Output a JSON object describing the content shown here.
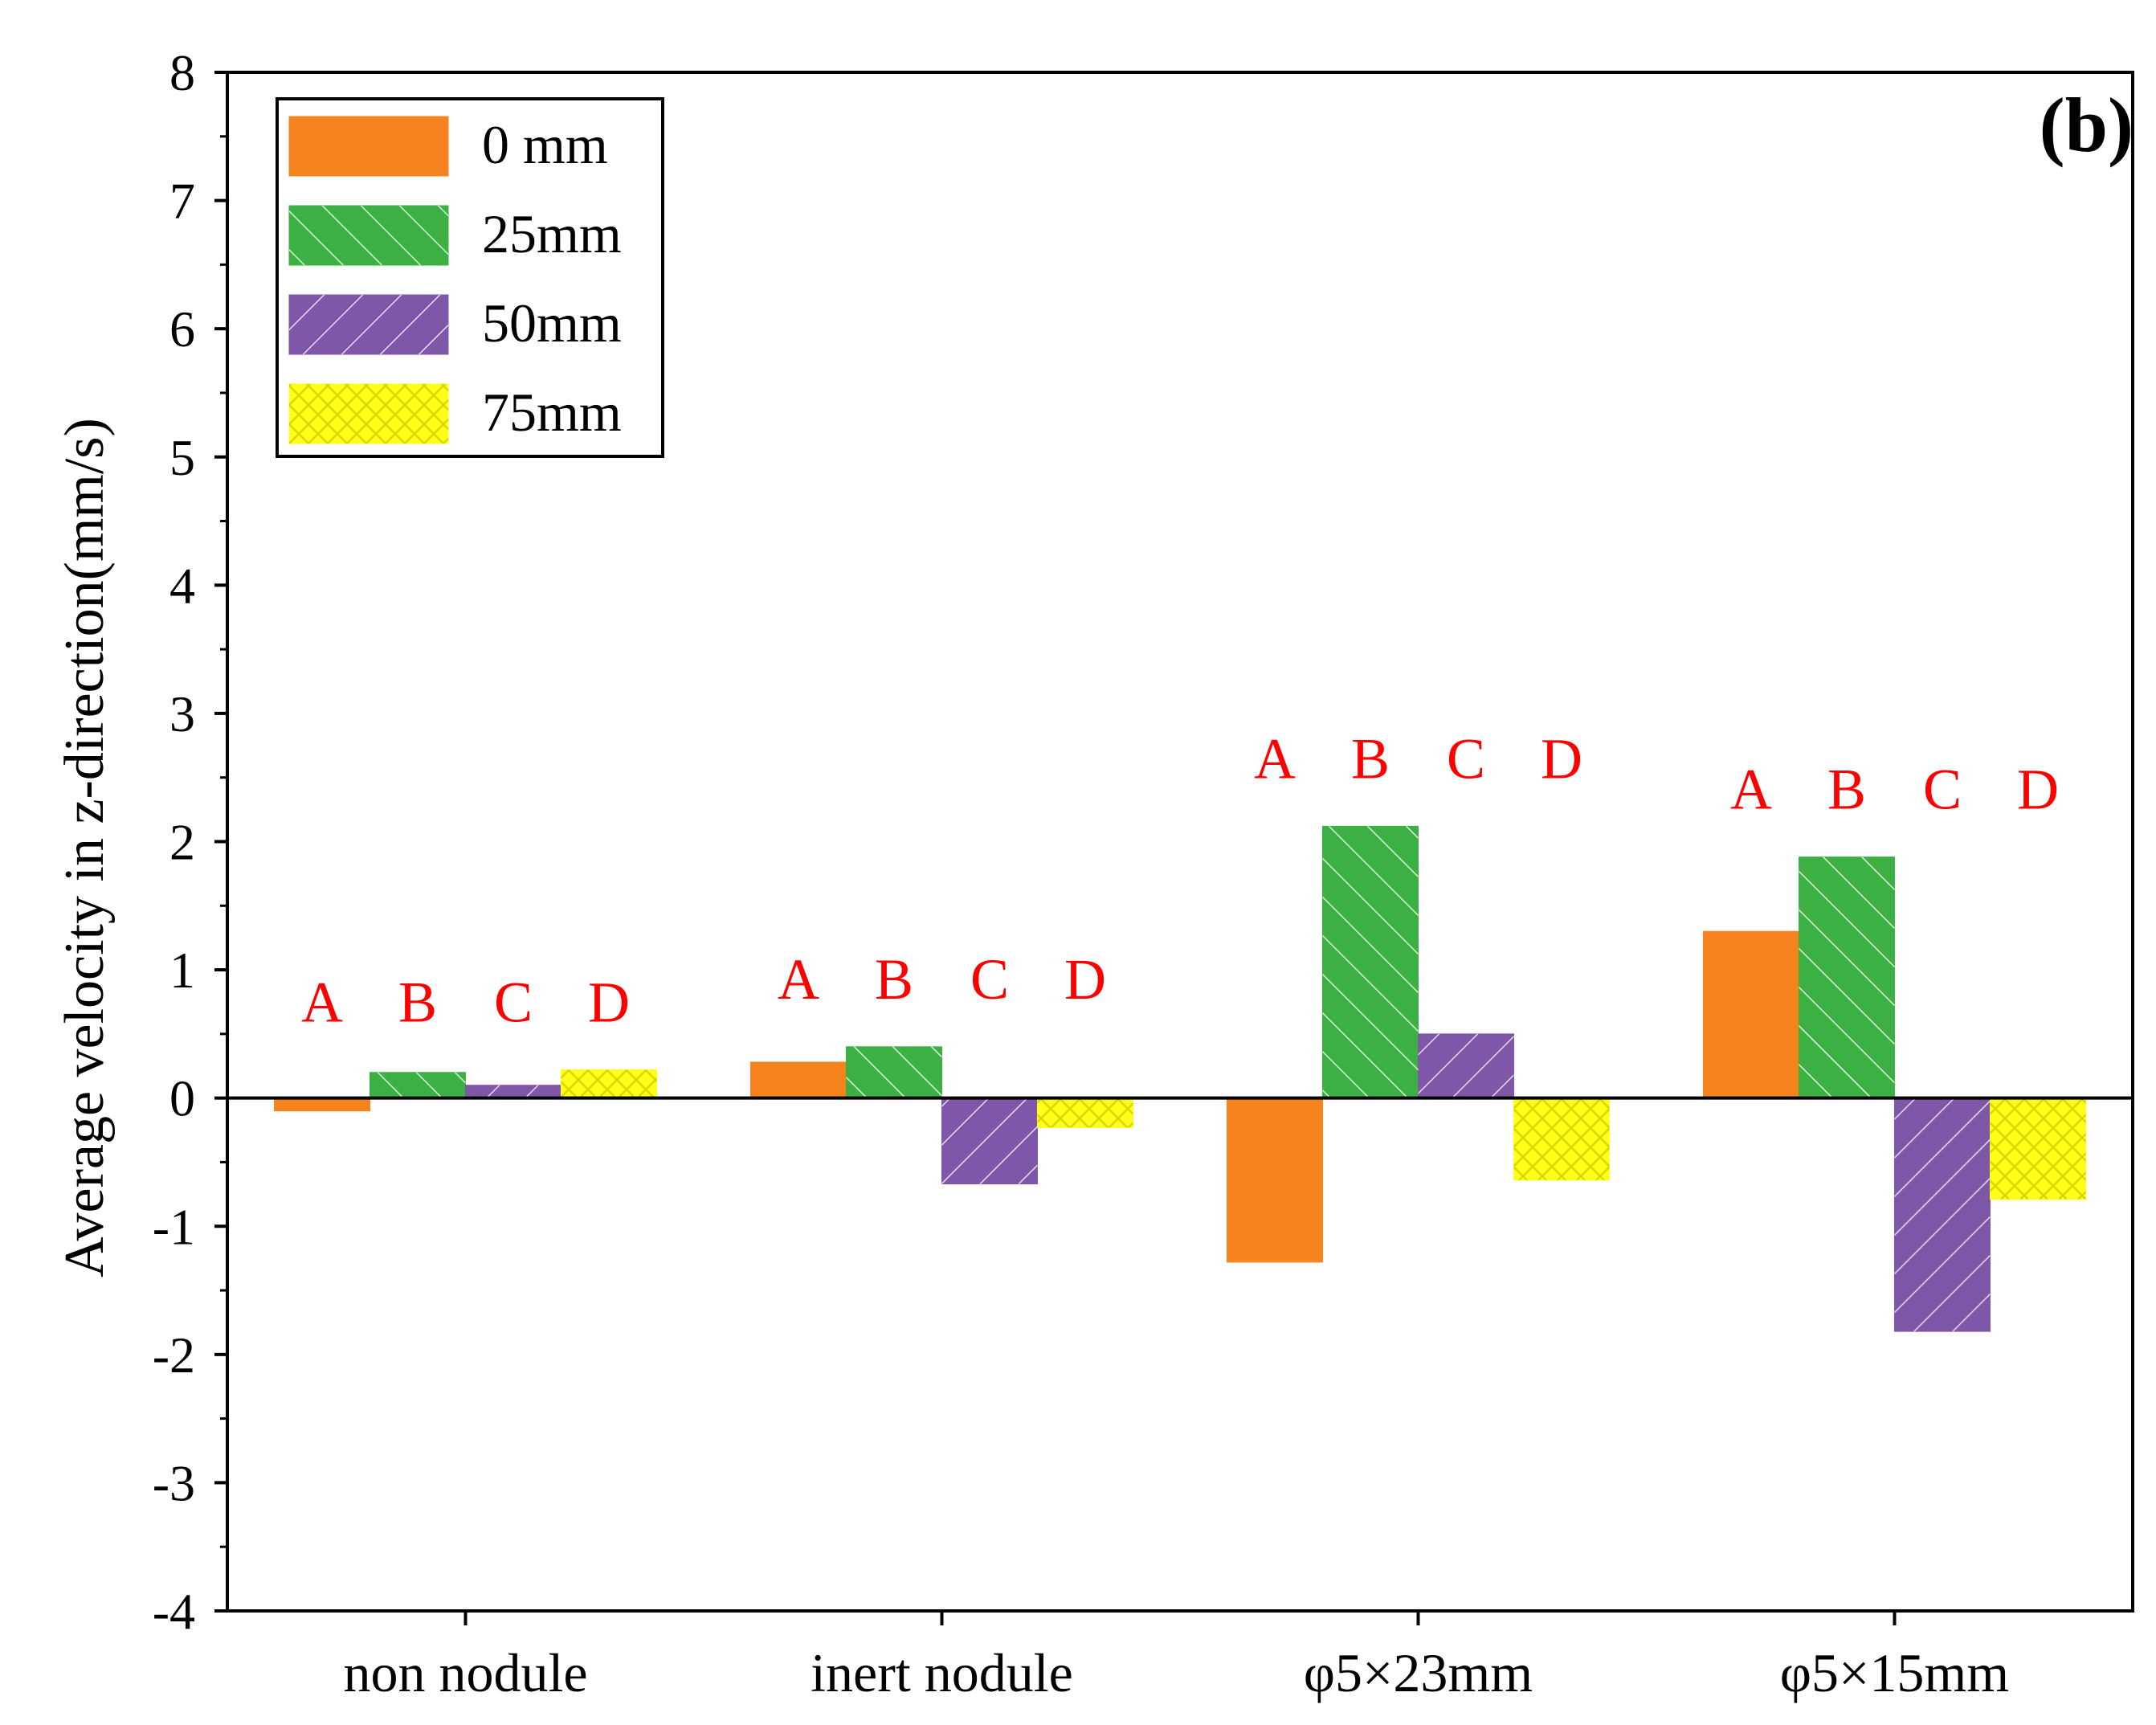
{
  "chart_data": {
    "type": "bar",
    "panel_label": "(b)",
    "title": "",
    "xlabel": "",
    "ylabel": "Average velocity in z-direction(mm/s)",
    "ylim": [
      -4,
      8
    ],
    "yticks": [
      "-4",
      "-3",
      "-2",
      "-1",
      "0",
      "1",
      "2",
      "3",
      "4",
      "5",
      "6",
      "7",
      "8"
    ],
    "categories": [
      "non nodule",
      "inert nodule",
      "φ5×23mm",
      "φ5×15mm"
    ],
    "series": [
      {
        "name": "0 mm",
        "color": "#f5841f",
        "pattern": "solid",
        "values": [
          -0.1,
          0.28,
          -1.28,
          1.3
        ]
      },
      {
        "name": "25mm",
        "color": "#3cb043",
        "pattern": "slash",
        "values": [
          0.2,
          0.4,
          2.12,
          1.88
        ]
      },
      {
        "name": "50mm",
        "color": "#7e57a8",
        "pattern": "backslash",
        "values": [
          0.1,
          -0.67,
          0.5,
          -1.82
        ]
      },
      {
        "name": "75mm",
        "color": "#ffff1a",
        "pattern": "cross",
        "values": [
          0.22,
          -0.23,
          -0.64,
          -0.79
        ]
      }
    ],
    "annotations": [
      {
        "category": "non nodule",
        "labels": [
          "A",
          "B",
          "C",
          "D"
        ]
      },
      {
        "category": "inert nodule",
        "labels": [
          "A",
          "B",
          "C",
          "D"
        ]
      },
      {
        "category": "φ5×23mm",
        "labels": [
          "A",
          "B",
          "C",
          "D"
        ]
      },
      {
        "category": "φ5×15mm",
        "labels": [
          "A",
          "B",
          "C",
          "D"
        ]
      }
    ],
    "legend_position": "top-left",
    "grid": false
  }
}
